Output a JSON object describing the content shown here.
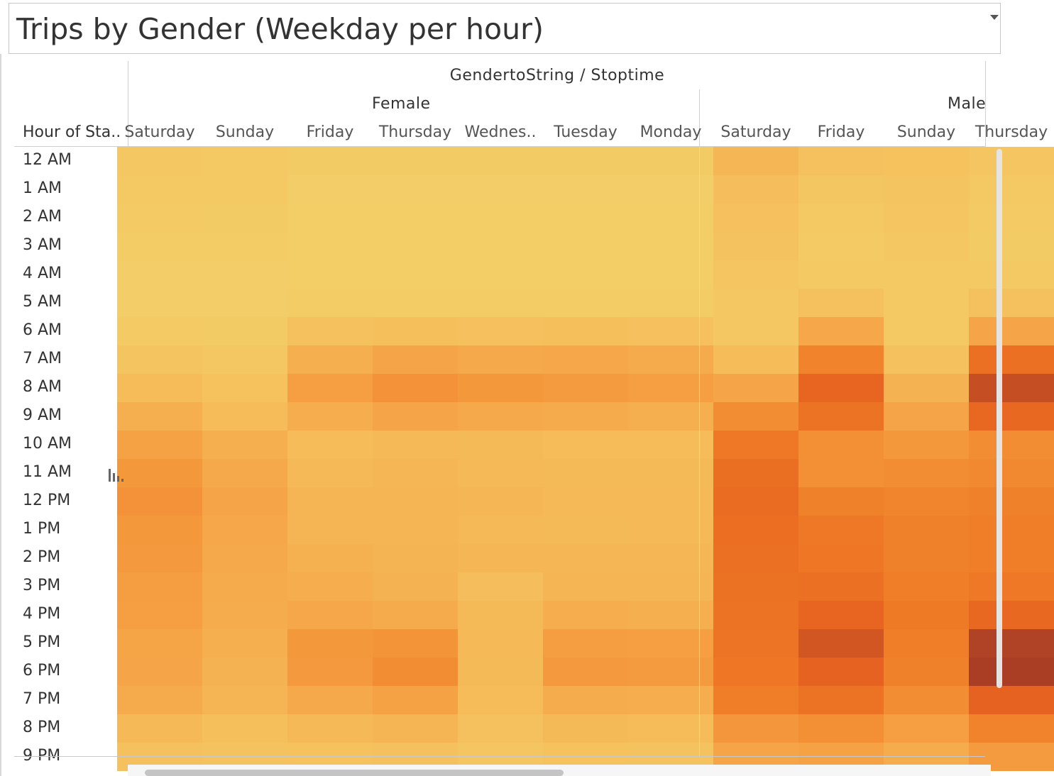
{
  "title": "Trips by Gender (Weekday per hour)",
  "chart_data": {
    "type": "heatmap",
    "title": "Trips by Gender (Weekday per hour)",
    "column_group_title": "GendertoString / Stoptime",
    "row_header": "Hour of Sta..",
    "genders": [
      {
        "name": "Female",
        "columns": [
          "Saturday",
          "Sunday",
          "Friday",
          "Thursday",
          "Wednes..",
          "Tuesday",
          "Monday"
        ],
        "values": [
          [
            0.12,
            0.11,
            0.08,
            0.08,
            0.08,
            0.08,
            0.08
          ],
          [
            0.1,
            0.1,
            0.06,
            0.06,
            0.06,
            0.06,
            0.06
          ],
          [
            0.09,
            0.08,
            0.05,
            0.05,
            0.05,
            0.05,
            0.05
          ],
          [
            0.07,
            0.07,
            0.05,
            0.05,
            0.05,
            0.05,
            0.05
          ],
          [
            0.06,
            0.06,
            0.05,
            0.05,
            0.05,
            0.05,
            0.05
          ],
          [
            0.06,
            0.06,
            0.07,
            0.07,
            0.07,
            0.07,
            0.07
          ],
          [
            0.09,
            0.08,
            0.18,
            0.2,
            0.19,
            0.2,
            0.19
          ],
          [
            0.15,
            0.12,
            0.3,
            0.36,
            0.34,
            0.35,
            0.33
          ],
          [
            0.22,
            0.17,
            0.4,
            0.47,
            0.44,
            0.42,
            0.4
          ],
          [
            0.3,
            0.22,
            0.31,
            0.36,
            0.34,
            0.33,
            0.3
          ],
          [
            0.38,
            0.3,
            0.22,
            0.24,
            0.23,
            0.22,
            0.22
          ],
          [
            0.44,
            0.34,
            0.24,
            0.25,
            0.24,
            0.23,
            0.23
          ],
          [
            0.47,
            0.36,
            0.26,
            0.26,
            0.25,
            0.24,
            0.24
          ],
          [
            0.44,
            0.35,
            0.26,
            0.26,
            0.24,
            0.23,
            0.24
          ],
          [
            0.43,
            0.34,
            0.29,
            0.27,
            0.25,
            0.25,
            0.25
          ],
          [
            0.41,
            0.33,
            0.31,
            0.28,
            0.21,
            0.26,
            0.26
          ],
          [
            0.4,
            0.32,
            0.35,
            0.33,
            0.23,
            0.31,
            0.3
          ],
          [
            0.37,
            0.3,
            0.44,
            0.46,
            0.24,
            0.41,
            0.4
          ],
          [
            0.36,
            0.28,
            0.43,
            0.5,
            0.23,
            0.43,
            0.42
          ],
          [
            0.33,
            0.26,
            0.34,
            0.38,
            0.22,
            0.32,
            0.31
          ],
          [
            0.24,
            0.2,
            0.24,
            0.26,
            0.18,
            0.23,
            0.22
          ],
          [
            0.18,
            0.16,
            0.17,
            0.18,
            0.14,
            0.17,
            0.16
          ]
        ]
      },
      {
        "name": "Male",
        "columns": [
          "Saturday",
          "Friday",
          "Sunday",
          "Thursday"
        ],
        "values": [
          [
            0.25,
            0.18,
            0.17,
            0.14
          ],
          [
            0.21,
            0.13,
            0.15,
            0.11
          ],
          [
            0.19,
            0.1,
            0.14,
            0.09
          ],
          [
            0.16,
            0.09,
            0.12,
            0.08
          ],
          [
            0.14,
            0.1,
            0.11,
            0.1
          ],
          [
            0.12,
            0.18,
            0.1,
            0.18
          ],
          [
            0.12,
            0.35,
            0.1,
            0.36
          ],
          [
            0.22,
            0.55,
            0.18,
            0.68
          ],
          [
            0.36,
            0.78,
            0.28,
            0.9
          ],
          [
            0.5,
            0.66,
            0.36,
            0.75
          ],
          [
            0.62,
            0.48,
            0.44,
            0.5
          ],
          [
            0.69,
            0.48,
            0.5,
            0.52
          ],
          [
            0.72,
            0.56,
            0.54,
            0.56
          ],
          [
            0.7,
            0.62,
            0.56,
            0.58
          ],
          [
            0.68,
            0.63,
            0.56,
            0.58
          ],
          [
            0.67,
            0.68,
            0.58,
            0.62
          ],
          [
            0.66,
            0.78,
            0.6,
            0.75
          ],
          [
            0.65,
            0.86,
            0.58,
            0.96
          ],
          [
            0.63,
            0.8,
            0.56,
            0.98
          ],
          [
            0.58,
            0.66,
            0.5,
            0.8
          ],
          [
            0.45,
            0.48,
            0.4,
            0.55
          ],
          [
            0.36,
            0.38,
            0.32,
            0.42
          ]
        ]
      }
    ],
    "rows": [
      "12 AM",
      "1 AM",
      "2 AM",
      "3 AM",
      "4 AM",
      "5 AM",
      "6 AM",
      "7 AM",
      "8 AM",
      "9 AM",
      "10 AM",
      "11 AM",
      "12 PM",
      "1 PM",
      "2 PM",
      "3 PM",
      "4 PM",
      "5 PM",
      "6 PM",
      "7 PM",
      "8 PM",
      "9 PM"
    ],
    "color_scale": [
      "#f2d36b",
      "#f5bf5c",
      "#f59f42",
      "#ef7a25",
      "#e66220",
      "#a33a26"
    ]
  }
}
